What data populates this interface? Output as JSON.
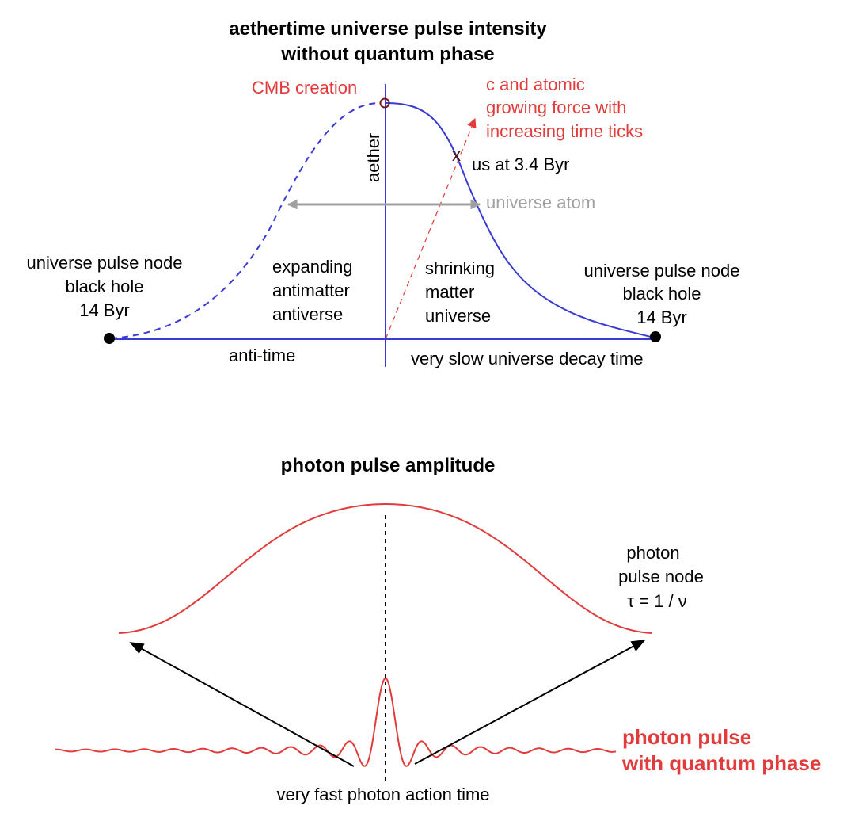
{
  "colors": {
    "axis": "#3a3ad6",
    "red": "#e23b3b",
    "grey": "#a0a0a0",
    "black": "#000000"
  },
  "top": {
    "title_line1": "aethertime universe pulse intensity",
    "title_line2": "without quantum phase",
    "cmb_label": "CMB creation",
    "c_atomic_line1": "c and atomic",
    "c_atomic_line2": "growing force with",
    "c_atomic_line3": "increasing time ticks",
    "aether_label": "aether",
    "us_marker": "x",
    "us_label": "us at 3.4 Byr",
    "universe_atom_label": "universe atom",
    "left_node_line1": "universe pulse node",
    "left_node_line2": "black hole",
    "left_node_line3": "14 Byr",
    "antiverse_line1": "expanding",
    "antiverse_line2": "antimatter",
    "antiverse_line3": "antiverse",
    "matter_line1": "shrinking",
    "matter_line2": "matter",
    "matter_line3": "universe",
    "right_node_line1": "universe pulse node",
    "right_node_line2": "black hole",
    "right_node_line3": "14 Byr",
    "anti_time_label": "anti-time",
    "decay_time_label": "very slow universe decay time"
  },
  "bottom": {
    "title": "photon pulse amplitude",
    "photon_node_line1": "photon",
    "photon_node_line2": "pulse node",
    "photon_node_line3": "τ = 1 / ν",
    "phase_line1": "photon pulse",
    "phase_line2": "with quantum phase",
    "action_time_label": "very fast photon action time"
  }
}
